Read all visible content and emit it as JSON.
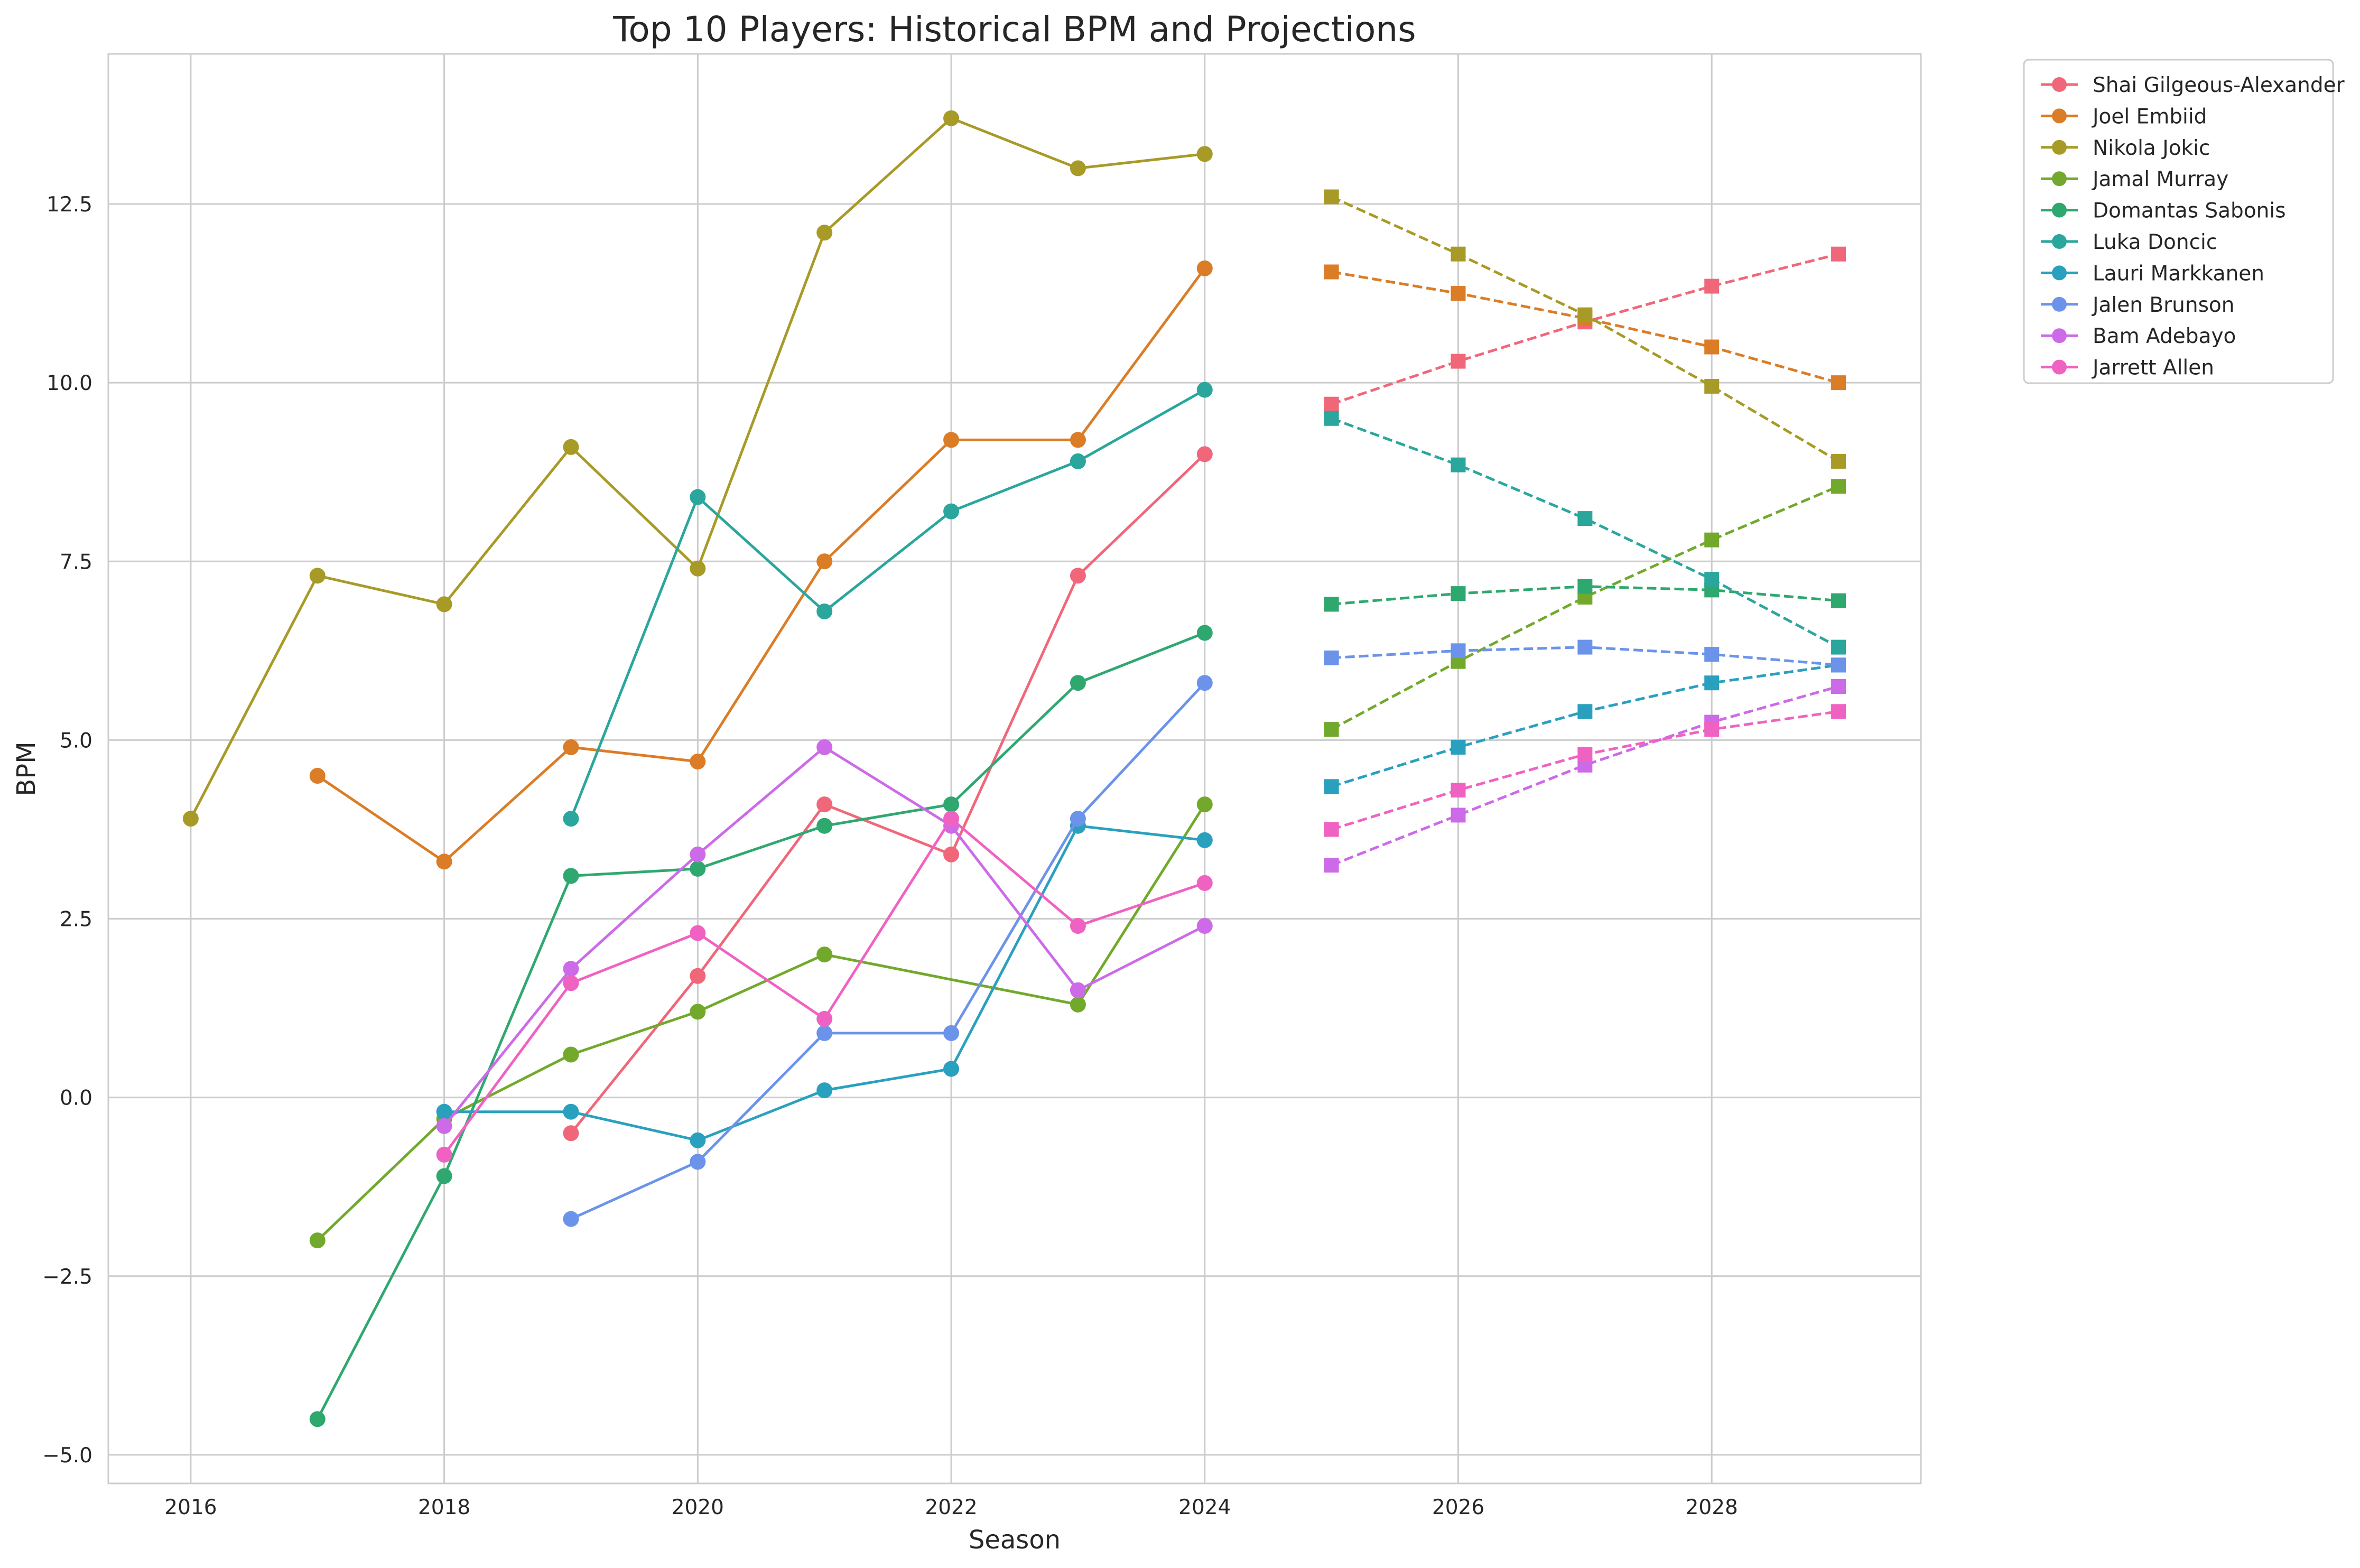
{
  "chart_data": {
    "type": "line",
    "title": "Top 10 Players: Historical BPM and Projections",
    "xlabel": "Season",
    "ylabel": "BPM",
    "xlim": [
      2015.35,
      2029.65
    ],
    "ylim": [
      -5.4,
      14.6
    ],
    "xticks": [
      2016,
      2018,
      2020,
      2022,
      2024,
      2026,
      2028
    ],
    "yticks": [
      -5.0,
      -2.5,
      0.0,
      2.5,
      5.0,
      7.5,
      10.0,
      12.5
    ],
    "ytick_labels": [
      "−5.0",
      "−2.5",
      "0.0",
      "2.5",
      "5.0",
      "7.5",
      "10.0",
      "12.5"
    ],
    "grid": true,
    "legend_position": "outside-top-right",
    "series": [
      {
        "name": "Shai Gilgeous-Alexander",
        "color": "#f0677a",
        "historical": [
          [
            2019,
            -0.5
          ],
          [
            2020,
            1.7
          ],
          [
            2021,
            4.1
          ],
          [
            2022,
            3.4
          ],
          [
            2023,
            7.3
          ],
          [
            2024,
            9.0
          ]
        ],
        "projection": [
          [
            2025,
            9.7
          ],
          [
            2026,
            10.3
          ],
          [
            2027,
            10.85
          ],
          [
            2028,
            11.35
          ],
          [
            2029,
            11.8
          ]
        ]
      },
      {
        "name": "Joel Embiid",
        "color": "#db7c26",
        "historical": [
          [
            2017,
            4.5
          ],
          [
            2018,
            3.3
          ],
          [
            2019,
            4.9
          ],
          [
            2020,
            4.7
          ],
          [
            2021,
            7.5
          ],
          [
            2022,
            9.2
          ],
          [
            2023,
            9.2
          ],
          [
            2024,
            11.6
          ]
        ],
        "projection": [
          [
            2025,
            11.55
          ],
          [
            2026,
            11.25
          ],
          [
            2027,
            10.9
          ],
          [
            2028,
            10.5
          ],
          [
            2029,
            10.0
          ]
        ]
      },
      {
        "name": "Nikola Jokic",
        "color": "#a89a27",
        "historical": [
          [
            2016,
            3.9
          ],
          [
            2017,
            7.3
          ],
          [
            2018,
            6.9
          ],
          [
            2019,
            9.1
          ],
          [
            2020,
            7.4
          ],
          [
            2021,
            12.1
          ],
          [
            2022,
            13.7
          ],
          [
            2023,
            13.0
          ],
          [
            2024,
            13.2
          ]
        ],
        "projection": [
          [
            2025,
            12.6
          ],
          [
            2026,
            11.8
          ],
          [
            2027,
            10.95
          ],
          [
            2028,
            9.95
          ],
          [
            2029,
            8.9
          ]
        ]
      },
      {
        "name": "Jamal Murray",
        "color": "#72a92c",
        "historical": [
          [
            2017,
            -2.0
          ],
          [
            2018,
            -0.3
          ],
          [
            2019,
            0.6
          ],
          [
            2020,
            1.2
          ],
          [
            2021,
            2.0
          ],
          [
            2023,
            1.3
          ],
          [
            2024,
            4.1
          ]
        ],
        "projection": [
          [
            2025,
            5.15
          ],
          [
            2026,
            6.1
          ],
          [
            2027,
            7.0
          ],
          [
            2028,
            7.8
          ],
          [
            2029,
            8.55
          ]
        ]
      },
      {
        "name": "Domantas Sabonis",
        "color": "#2fa870",
        "historical": [
          [
            2017,
            -4.5
          ],
          [
            2018,
            -1.1
          ],
          [
            2019,
            3.1
          ],
          [
            2020,
            3.2
          ],
          [
            2021,
            3.8
          ],
          [
            2022,
            4.1
          ],
          [
            2023,
            5.8
          ],
          [
            2024,
            6.5
          ]
        ],
        "projection": [
          [
            2025,
            6.9
          ],
          [
            2026,
            7.05
          ],
          [
            2027,
            7.15
          ],
          [
            2028,
            7.1
          ],
          [
            2029,
            6.95
          ]
        ]
      },
      {
        "name": "Luka Doncic",
        "color": "#2aa69d",
        "historical": [
          [
            2019,
            3.9
          ],
          [
            2020,
            8.4
          ],
          [
            2021,
            6.8
          ],
          [
            2022,
            8.2
          ],
          [
            2023,
            8.9
          ],
          [
            2024,
            9.9
          ]
        ],
        "projection": [
          [
            2025,
            9.5
          ],
          [
            2026,
            8.85
          ],
          [
            2027,
            8.1
          ],
          [
            2028,
            7.25
          ],
          [
            2029,
            6.3
          ]
        ]
      },
      {
        "name": "Lauri Markkanen",
        "color": "#2aa0bf",
        "historical": [
          [
            2018,
            -0.2
          ],
          [
            2019,
            -0.2
          ],
          [
            2020,
            -0.6
          ],
          [
            2021,
            0.1
          ],
          [
            2022,
            0.4
          ],
          [
            2023,
            3.8
          ],
          [
            2024,
            3.6
          ]
        ],
        "projection": [
          [
            2025,
            4.35
          ],
          [
            2026,
            4.9
          ],
          [
            2027,
            5.4
          ],
          [
            2028,
            5.8
          ],
          [
            2029,
            6.05
          ]
        ]
      },
      {
        "name": "Jalen Brunson",
        "color": "#6b93ea",
        "historical": [
          [
            2019,
            -1.7
          ],
          [
            2020,
            -0.9
          ],
          [
            2021,
            0.9
          ],
          [
            2022,
            0.9
          ],
          [
            2023,
            3.9
          ],
          [
            2024,
            5.8
          ]
        ],
        "projection": [
          [
            2025,
            6.15
          ],
          [
            2026,
            6.25
          ],
          [
            2027,
            6.3
          ],
          [
            2028,
            6.2
          ],
          [
            2029,
            6.05
          ]
        ]
      },
      {
        "name": "Bam Adebayo",
        "color": "#cc6ae8",
        "historical": [
          [
            2018,
            -0.4
          ],
          [
            2019,
            1.8
          ],
          [
            2020,
            3.4
          ],
          [
            2021,
            4.9
          ],
          [
            2022,
            3.8
          ],
          [
            2023,
            1.5
          ],
          [
            2024,
            2.4
          ]
        ],
        "projection": [
          [
            2025,
            3.25
          ],
          [
            2026,
            3.95
          ],
          [
            2027,
            4.65
          ],
          [
            2028,
            5.25
          ],
          [
            2029,
            5.75
          ]
        ]
      },
      {
        "name": "Jarrett Allen",
        "color": "#f062c2",
        "historical": [
          [
            2018,
            -0.8
          ],
          [
            2019,
            1.6
          ],
          [
            2020,
            2.3
          ],
          [
            2021,
            1.1
          ],
          [
            2022,
            3.9
          ],
          [
            2023,
            2.4
          ],
          [
            2024,
            3.0
          ]
        ],
        "projection": [
          [
            2025,
            3.75
          ],
          [
            2026,
            4.3
          ],
          [
            2027,
            4.8
          ],
          [
            2028,
            5.15
          ],
          [
            2029,
            5.4
          ]
        ]
      }
    ]
  }
}
